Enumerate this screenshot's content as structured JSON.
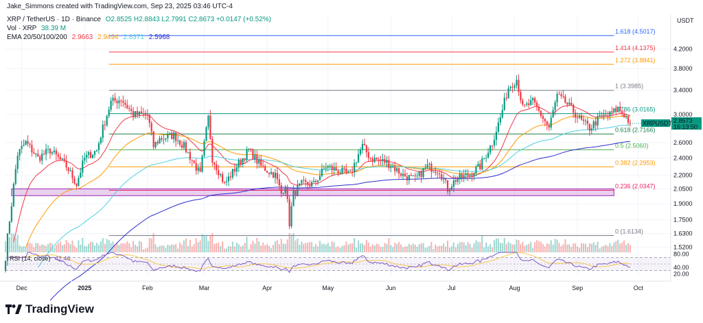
{
  "header": {
    "credit": "Jake_Simmons created with TradingView.com, Sep 23, 2025 03:46 UTC-4",
    "symbol": "XRP / TetherUS · 1D · Binance",
    "ohlc": "O2.8525 H2.8843 L2.7991 C2.8673 +0.0147 (+0.52%)",
    "vol_label": "Vol · XRP",
    "vol_value": "38.39 M",
    "ema_label": "EMA 20/50/100/200",
    "ema_values": [
      "2.9663",
      "2.9494",
      "2.8371",
      "2.5968"
    ],
    "ema_colors": [
      "#f23645",
      "#ff9800",
      "#4dd0e1",
      "#2b2bcf"
    ],
    "currency": "USDT"
  },
  "price_badge": {
    "symbol": "XRPUSDT",
    "price": "2.8673",
    "countdown": "16:13:50"
  },
  "fib_levels": [
    {
      "ratio": 1.618,
      "price": 4.5017,
      "label": "1.618 (4.5017)",
      "color": "#2962ff"
    },
    {
      "ratio": 1.414,
      "price": 4.1375,
      "label": "1.414 (4.1375)",
      "color": "#f23645"
    },
    {
      "ratio": 1.272,
      "price": 3.8841,
      "label": "1.272 (3.8841)",
      "color": "#ff9800"
    },
    {
      "ratio": 1,
      "price": 3.3985,
      "label": "1 (3.3985)",
      "color": "#787b86"
    },
    {
      "ratio": 0.786,
      "price": 3.0165,
      "label": "0.786 (3.0165)",
      "color": "#089981"
    },
    {
      "ratio": 0.618,
      "price": 2.7166,
      "label": "0.618 (2.7166)",
      "color": "#1e7f4d"
    },
    {
      "ratio": 0.5,
      "price": 2.506,
      "label": "0.5 (2.5060)",
      "color": "#4caf50"
    },
    {
      "ratio": 0.382,
      "price": 2.2953,
      "label": "0.382 (2.2953)",
      "color": "#ff9800"
    },
    {
      "ratio": 0.236,
      "price": 2.0347,
      "label": "0.236 (2.0347)",
      "color": "#e91e63"
    },
    {
      "ratio": 0,
      "price": 1.6134,
      "label": "0 (1.6134)",
      "color": "#787b86"
    }
  ],
  "support_zone": {
    "from": 1.98,
    "to": 2.05,
    "color": "#9c27b0"
  },
  "rsi": {
    "label": "RSI (14, close)",
    "value": "42.46",
    "ticks": [
      "80.00",
      "40.00",
      "20.00"
    ]
  },
  "brand": "TradingView",
  "chart_data": {
    "type": "candlestick",
    "symbol": "XRPUSDT",
    "interval": "1D",
    "y_scale": "log",
    "ylim": [
      1.48,
      5.0
    ],
    "y_ticks": [
      "4.2000",
      "3.8000",
      "3.4000",
      "3.0000",
      "2.6000",
      "2.4000",
      "2.2000",
      "2.0500",
      "1.9000",
      "1.7500",
      "1.6300",
      "1.5200"
    ],
    "x_tick_labels": [
      "Dec",
      "2025",
      "Feb",
      "Mar",
      "Apr",
      "May",
      "Jun",
      "Jul",
      "Aug",
      "Sep",
      "Oct"
    ],
    "x_tick_days": [
      0,
      31,
      62,
      90,
      121,
      151,
      182,
      212,
      243,
      274,
      304
    ],
    "x_range_days": [
      -8,
      320
    ],
    "key_points": [
      {
        "day": -8,
        "close": 1.45
      },
      {
        "day": -5,
        "close": 1.9
      },
      {
        "day": -2,
        "close": 2.45
      },
      {
        "day": 2,
        "close": 2.6
      },
      {
        "day": 8,
        "close": 2.4
      },
      {
        "day": 14,
        "close": 2.5
      },
      {
        "day": 22,
        "close": 2.3
      },
      {
        "day": 27,
        "close": 2.1
      },
      {
        "day": 31,
        "close": 2.4
      },
      {
        "day": 37,
        "close": 2.5
      },
      {
        "day": 44,
        "close": 3.2
      },
      {
        "day": 49,
        "close": 3.25
      },
      {
        "day": 55,
        "close": 3.0
      },
      {
        "day": 62,
        "close": 3.0
      },
      {
        "day": 65,
        "close": 2.55
      },
      {
        "day": 68,
        "close": 2.65
      },
      {
        "day": 75,
        "close": 2.7
      },
      {
        "day": 80,
        "close": 2.55
      },
      {
        "day": 88,
        "close": 2.2
      },
      {
        "day": 92,
        "close": 2.95
      },
      {
        "day": 94,
        "close": 2.4
      },
      {
        "day": 100,
        "close": 2.1
      },
      {
        "day": 106,
        "close": 2.3
      },
      {
        "day": 112,
        "close": 2.5
      },
      {
        "day": 118,
        "close": 2.3
      },
      {
        "day": 125,
        "close": 2.2
      },
      {
        "day": 128,
        "close": 2.0
      },
      {
        "day": 130,
        "close": 2.1
      },
      {
        "day": 132,
        "close": 1.72
      },
      {
        "day": 134,
        "close": 2.0
      },
      {
        "day": 138,
        "close": 2.1
      },
      {
        "day": 144,
        "close": 2.1
      },
      {
        "day": 150,
        "close": 2.3
      },
      {
        "day": 156,
        "close": 2.25
      },
      {
        "day": 162,
        "close": 2.2
      },
      {
        "day": 166,
        "close": 2.45
      },
      {
        "day": 168,
        "close": 2.55
      },
      {
        "day": 172,
        "close": 2.4
      },
      {
        "day": 180,
        "close": 2.35
      },
      {
        "day": 188,
        "close": 2.2
      },
      {
        "day": 194,
        "close": 2.15
      },
      {
        "day": 200,
        "close": 2.3
      },
      {
        "day": 206,
        "close": 2.25
      },
      {
        "day": 210,
        "close": 2.05
      },
      {
        "day": 214,
        "close": 2.15
      },
      {
        "day": 220,
        "close": 2.2
      },
      {
        "day": 226,
        "close": 2.3
      },
      {
        "day": 232,
        "close": 2.6
      },
      {
        "day": 236,
        "close": 2.95
      },
      {
        "day": 240,
        "close": 3.45
      },
      {
        "day": 244,
        "close": 3.6
      },
      {
        "day": 247,
        "close": 3.1
      },
      {
        "day": 252,
        "close": 3.2
      },
      {
        "day": 256,
        "close": 3.0
      },
      {
        "day": 260,
        "close": 2.8
      },
      {
        "day": 264,
        "close": 3.3
      },
      {
        "day": 268,
        "close": 3.2
      },
      {
        "day": 272,
        "close": 3.05
      },
      {
        "day": 276,
        "close": 2.9
      },
      {
        "day": 280,
        "close": 2.8
      },
      {
        "day": 285,
        "close": 2.95
      },
      {
        "day": 290,
        "close": 3.0
      },
      {
        "day": 294,
        "close": 3.1
      },
      {
        "day": 297,
        "close": 3.0
      },
      {
        "day": 300,
        "close": 2.8673
      }
    ]
  }
}
